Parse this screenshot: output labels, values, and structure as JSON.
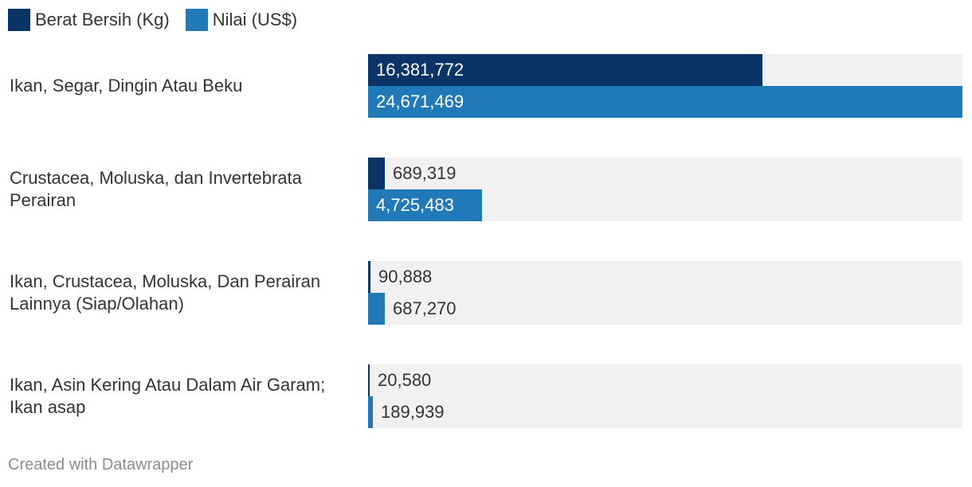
{
  "legend": {
    "items": [
      {
        "label": "Berat Bersih (Kg)",
        "color": "#0b3466"
      },
      {
        "label": "Nilai (US$)",
        "color": "#2279b8"
      }
    ]
  },
  "chart_data": {
    "type": "bar",
    "orientation": "horizontal",
    "categories": [
      "Ikan, Segar, Dingin Atau Beku",
      "Crustacea, Moluska, dan Invertebrata Perairan",
      "Ikan, Crustacea, Moluska, Dan Perairan Lainnya (Siap/Olahan)",
      "Ikan, Asin Kering Atau Dalam Air Garam; Ikan asap"
    ],
    "series": [
      {
        "name": "Berat Bersih (Kg)",
        "color": "#0b3466",
        "values": [
          16381772,
          689319,
          90888,
          20580
        ]
      },
      {
        "name": "Nilai (US$)",
        "color": "#2279b8",
        "values": [
          24671469,
          4725483,
          687270,
          189939
        ]
      }
    ],
    "xlim": [
      0,
      24671469
    ],
    "grid": false,
    "legend_position": "top-left",
    "value_labels": [
      [
        "16,381,772",
        "24,671,469"
      ],
      [
        "689,319",
        "4,725,483"
      ],
      [
        "90,888",
        "687,270"
      ],
      [
        "20,580",
        "189,939"
      ]
    ]
  },
  "footer": {
    "credit": "Created with Datawrapper"
  }
}
